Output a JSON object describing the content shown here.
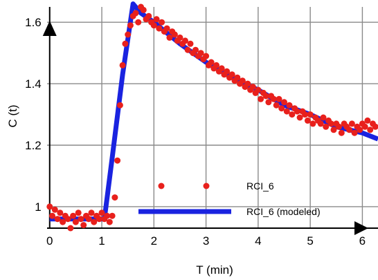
{
  "chart_data": {
    "type": "scatter",
    "title": "",
    "xlabel": "T (min)",
    "ylabel": "C (t)",
    "xlim": [
      -0.05,
      6.3
    ],
    "ylim": [
      0.93,
      1.65
    ],
    "x_ticks": [
      0,
      1,
      2,
      3,
      4,
      5,
      6
    ],
    "y_ticks": [
      1,
      1.2,
      1.4,
      1.6
    ],
    "grid": true,
    "legend_position": "bottom-center",
    "series": [
      {
        "name": "RCI_6",
        "kind": "points",
        "color": "#e8201c",
        "points": [
          [
            0.0,
            1.0
          ],
          [
            0.05,
            0.97
          ],
          [
            0.1,
            0.99
          ],
          [
            0.15,
            0.96
          ],
          [
            0.2,
            0.98
          ],
          [
            0.25,
            0.95
          ],
          [
            0.3,
            0.97
          ],
          [
            0.35,
            0.96
          ],
          [
            0.4,
            0.93
          ],
          [
            0.45,
            0.97
          ],
          [
            0.5,
            0.95
          ],
          [
            0.55,
            0.98
          ],
          [
            0.6,
            0.96
          ],
          [
            0.65,
            0.94
          ],
          [
            0.7,
            0.97
          ],
          [
            0.75,
            0.96
          ],
          [
            0.8,
            0.98
          ],
          [
            0.85,
            0.95
          ],
          [
            0.9,
            0.97
          ],
          [
            0.95,
            0.96
          ],
          [
            1.0,
            0.98
          ],
          [
            1.05,
            0.96
          ],
          [
            1.1,
            0.97
          ],
          [
            1.15,
            0.95
          ],
          [
            1.2,
            0.97
          ],
          [
            1.25,
            1.03
          ],
          [
            1.3,
            1.15
          ],
          [
            1.35,
            1.33
          ],
          [
            1.4,
            1.46
          ],
          [
            1.45,
            1.53
          ],
          [
            1.5,
            1.56
          ],
          [
            1.55,
            1.59
          ],
          [
            1.6,
            1.62
          ],
          [
            1.65,
            1.63
          ],
          [
            1.7,
            1.6
          ],
          [
            1.75,
            1.65
          ],
          [
            1.8,
            1.64
          ],
          [
            1.85,
            1.61
          ],
          [
            1.9,
            1.62
          ],
          [
            1.95,
            1.6
          ],
          [
            2.0,
            1.59
          ],
          [
            2.05,
            1.61
          ],
          [
            2.1,
            1.58
          ],
          [
            2.15,
            1.6
          ],
          [
            2.2,
            1.57
          ],
          [
            2.25,
            1.58
          ],
          [
            2.3,
            1.55
          ],
          [
            2.35,
            1.57
          ],
          [
            2.4,
            1.56
          ],
          [
            2.45,
            1.54
          ],
          [
            2.5,
            1.55
          ],
          [
            2.55,
            1.53
          ],
          [
            2.6,
            1.54
          ],
          [
            2.65,
            1.51
          ],
          [
            2.7,
            1.53
          ],
          [
            2.75,
            1.5
          ],
          [
            2.8,
            1.51
          ],
          [
            2.85,
            1.49
          ],
          [
            2.9,
            1.5
          ],
          [
            2.95,
            1.48
          ],
          [
            3.0,
            1.49
          ],
          [
            3.05,
            1.46
          ],
          [
            3.1,
            1.47
          ],
          [
            3.15,
            1.45
          ],
          [
            3.2,
            1.46
          ],
          [
            3.25,
            1.44
          ],
          [
            3.3,
            1.45
          ],
          [
            3.35,
            1.43
          ],
          [
            3.4,
            1.44
          ],
          [
            3.45,
            1.42
          ],
          [
            3.5,
            1.43
          ],
          [
            3.55,
            1.41
          ],
          [
            3.6,
            1.42
          ],
          [
            3.65,
            1.4
          ],
          [
            3.7,
            1.41
          ],
          [
            3.75,
            1.39
          ],
          [
            3.8,
            1.4
          ],
          [
            3.85,
            1.38
          ],
          [
            3.9,
            1.39
          ],
          [
            3.95,
            1.37
          ],
          [
            4.0,
            1.38
          ],
          [
            4.05,
            1.35
          ],
          [
            4.1,
            1.37
          ],
          [
            4.15,
            1.36
          ],
          [
            4.2,
            1.34
          ],
          [
            4.25,
            1.36
          ],
          [
            4.3,
            1.35
          ],
          [
            4.35,
            1.33
          ],
          [
            4.4,
            1.35
          ],
          [
            4.45,
            1.32
          ],
          [
            4.5,
            1.34
          ],
          [
            4.55,
            1.31
          ],
          [
            4.6,
            1.33
          ],
          [
            4.65,
            1.3
          ],
          [
            4.7,
            1.32
          ],
          [
            4.75,
            1.31
          ],
          [
            4.8,
            1.29
          ],
          [
            4.85,
            1.31
          ],
          [
            4.9,
            1.3
          ],
          [
            4.95,
            1.28
          ],
          [
            5.0,
            1.3
          ],
          [
            5.05,
            1.27
          ],
          [
            5.1,
            1.29
          ],
          [
            5.15,
            1.28
          ],
          [
            5.2,
            1.27
          ],
          [
            5.25,
            1.29
          ],
          [
            5.3,
            1.26
          ],
          [
            5.35,
            1.28
          ],
          [
            5.4,
            1.27
          ],
          [
            5.45,
            1.25
          ],
          [
            5.5,
            1.27
          ],
          [
            5.55,
            1.26
          ],
          [
            5.6,
            1.24
          ],
          [
            5.65,
            1.27
          ],
          [
            5.7,
            1.26
          ],
          [
            5.75,
            1.25
          ],
          [
            5.8,
            1.27
          ],
          [
            5.85,
            1.24
          ],
          [
            5.9,
            1.26
          ],
          [
            5.95,
            1.25
          ],
          [
            6.0,
            1.27
          ],
          [
            6.05,
            1.26
          ],
          [
            6.1,
            1.28
          ],
          [
            6.15,
            1.25
          ],
          [
            6.2,
            1.27
          ],
          [
            6.25,
            1.26
          ]
        ]
      },
      {
        "name": "RCI_6 (modeled)",
        "kind": "line",
        "color": "#1a23e0",
        "points": [
          [
            0.0,
            0.96
          ],
          [
            1.05,
            0.96
          ],
          [
            1.2,
            1.16
          ],
          [
            1.4,
            1.43
          ],
          [
            1.6,
            1.66
          ],
          [
            1.75,
            1.63
          ],
          [
            2.0,
            1.6
          ],
          [
            2.5,
            1.53
          ],
          [
            3.0,
            1.47
          ],
          [
            3.5,
            1.42
          ],
          [
            4.0,
            1.38
          ],
          [
            4.5,
            1.33
          ],
          [
            5.0,
            1.3
          ],
          [
            5.5,
            1.26
          ],
          [
            6.0,
            1.24
          ],
          [
            6.3,
            1.22
          ]
        ]
      }
    ],
    "legend": [
      {
        "label": "RCI_6",
        "kind": "points"
      },
      {
        "label": "RCI_6 (modeled)",
        "kind": "line"
      }
    ]
  }
}
